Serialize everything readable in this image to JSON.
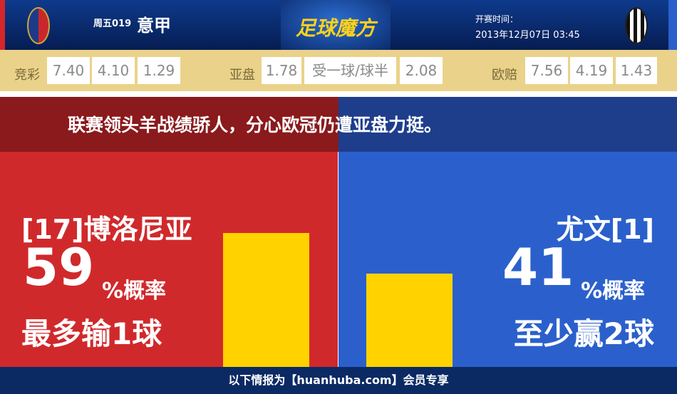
{
  "header": {
    "home_logo": "Bologna FC crest",
    "away_logo": "Juventus crest",
    "match_no": "周五019",
    "league": "意甲",
    "brand": "足球魔方",
    "kickoff_label": "开赛时间：",
    "kickoff_time": "2013年12月07日 03:45"
  },
  "odds": {
    "jingcai": {
      "label": "竞彩",
      "values": [
        "7.40",
        "4.10",
        "1.29"
      ]
    },
    "asian": {
      "label": "亚盘",
      "values": [
        "1.78",
        "受一球/球半",
        "2.08"
      ]
    },
    "euro": {
      "label": "欧赔",
      "values": [
        "7.56",
        "4.19",
        "1.43"
      ]
    }
  },
  "headline": "联赛领头羊战绩骄人，分心欧冠仍遭亚盘力挺。",
  "home": {
    "name": "[17]博洛尼亚",
    "probability": 59,
    "pct_label": "59",
    "pct_suffix": "%概率",
    "verdict": "最多输1球",
    "color": "#d0292b"
  },
  "away": {
    "name": "尤文[1]",
    "probability": 41,
    "pct_label": "41",
    "pct_suffix": "%概率",
    "verdict": "至少赢2球",
    "color": "#2b60cc"
  },
  "bar_color": "#ffd200",
  "footer": "以下情报为【huanhuba.com】会员专享"
}
